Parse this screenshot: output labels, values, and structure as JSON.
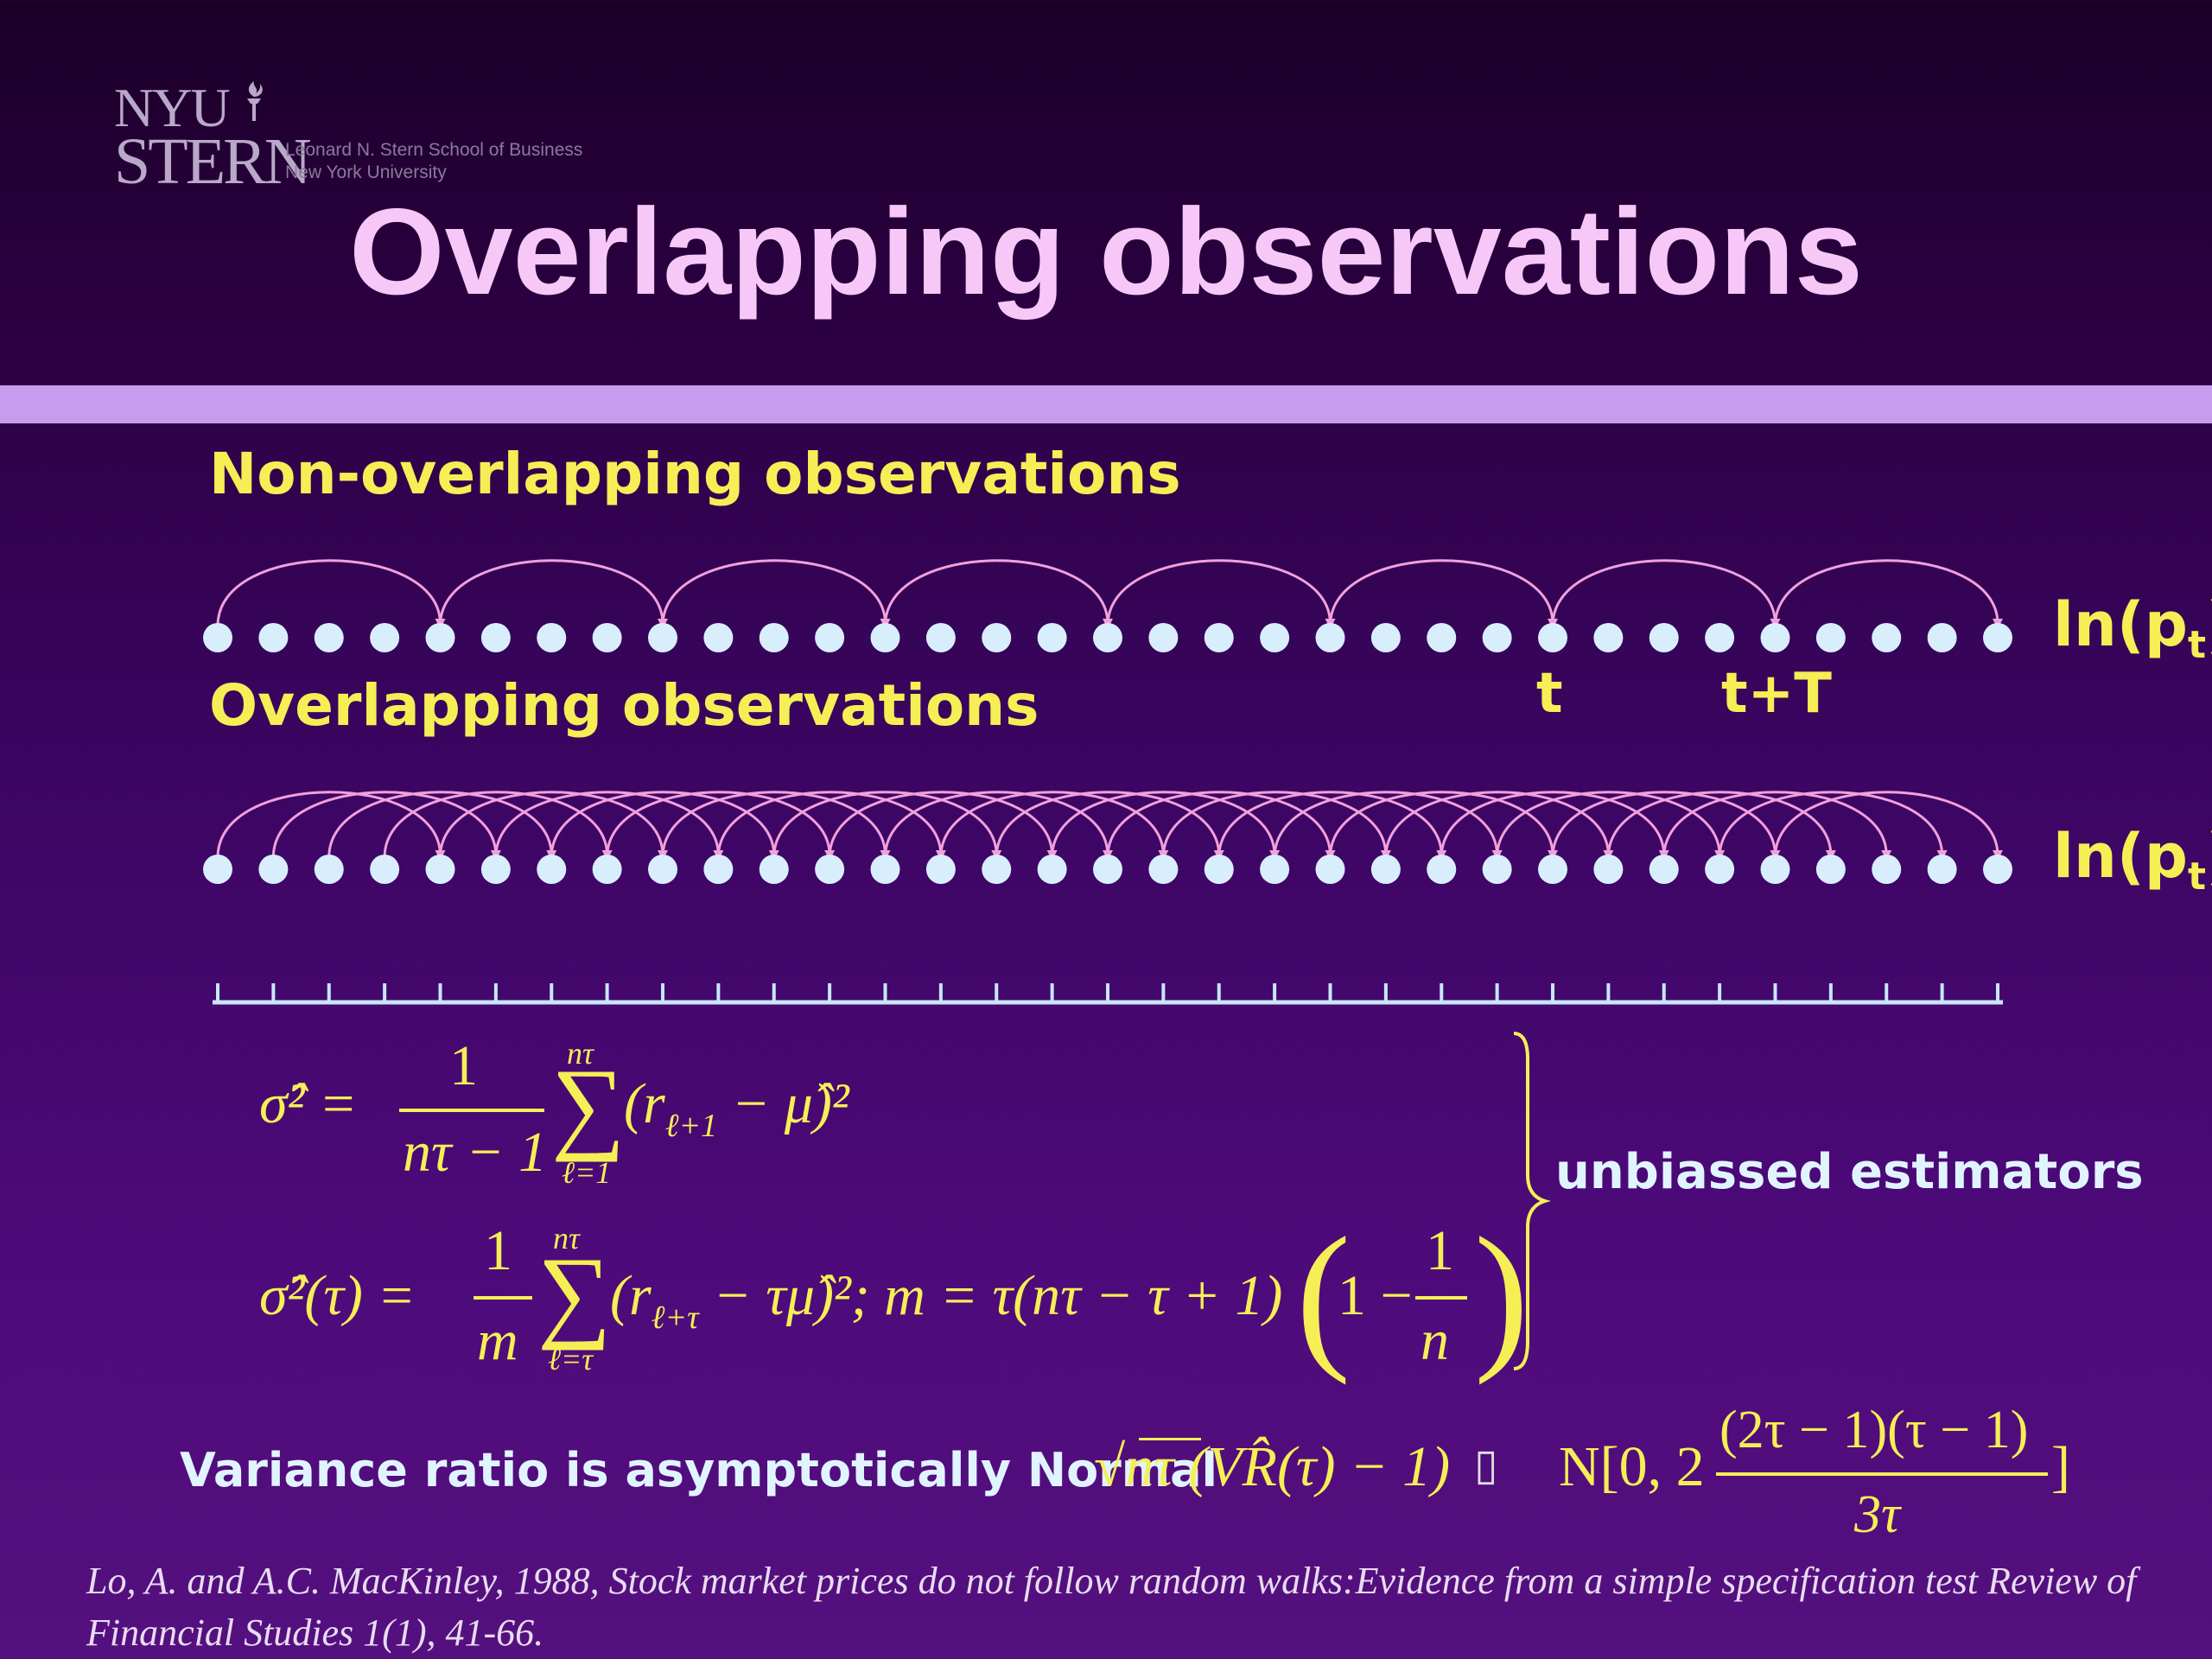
{
  "logo": {
    "nyu": "NYU",
    "stern": "STERN",
    "line1": "Leonard N. Stern School of Business",
    "line2": "New York University",
    "icon": "torch-icon"
  },
  "title": "Overlapping observations",
  "non_overlapping": {
    "heading": "Non-overlapping observations",
    "series_label": "ln(p",
    "series_sub": "t",
    "series_close": ")",
    "marker_t": "t",
    "marker_tT": "t+T"
  },
  "overlapping": {
    "heading": "Overlapping observations",
    "series_label": "ln(p",
    "series_sub": "t",
    "series_close": ")"
  },
  "diagram": {
    "dot_count": 33,
    "window": 4,
    "colors": {
      "dot": "#d8eefc",
      "arc": "#f2a0dc",
      "tick": "#c8e6fa"
    }
  },
  "formulas": {
    "f1_lhs": "σ̂² =",
    "f1_num": "1",
    "f1_den": "nτ − 1",
    "f1_sum_top": "nτ",
    "f1_sum_bot": "ℓ=1",
    "f1_body": "(r",
    "f1_sub": "ℓ+1",
    "f1_tail": " − μ̂)²",
    "f2_lhs": "σ̂²(τ) =",
    "f2_num": "1",
    "f2_den": "m",
    "f2_sum_top": "nτ",
    "f2_sum_bot": "ℓ=τ",
    "f2_body": "(r",
    "f2_sub": "ℓ+τ",
    "f2_tail": " − τμ̂)²;  m = τ(nτ − τ + 1)",
    "f2_paren_one": "1 −",
    "f2_paren_num": "1",
    "f2_paren_den": "n",
    "brace_label": "unbiassed estimators"
  },
  "variance_ratio": {
    "label": "Variance ratio is asymptotically Normal",
    "lhs": "√nτ (VR̂(τ) − 1)",
    "approx_glyph": "▯",
    "rhs_prefix": "N[0, 2",
    "rhs_num": "(2τ − 1)(τ − 1)",
    "rhs_den": "3τ",
    "rhs_suffix": "]"
  },
  "reference": "Lo, A. and A.C. MacKinley, 1988, Stock market prices do not follow random walks:Evidence from a simple specification test Review of Financial Studies 1(1), 41-66."
}
